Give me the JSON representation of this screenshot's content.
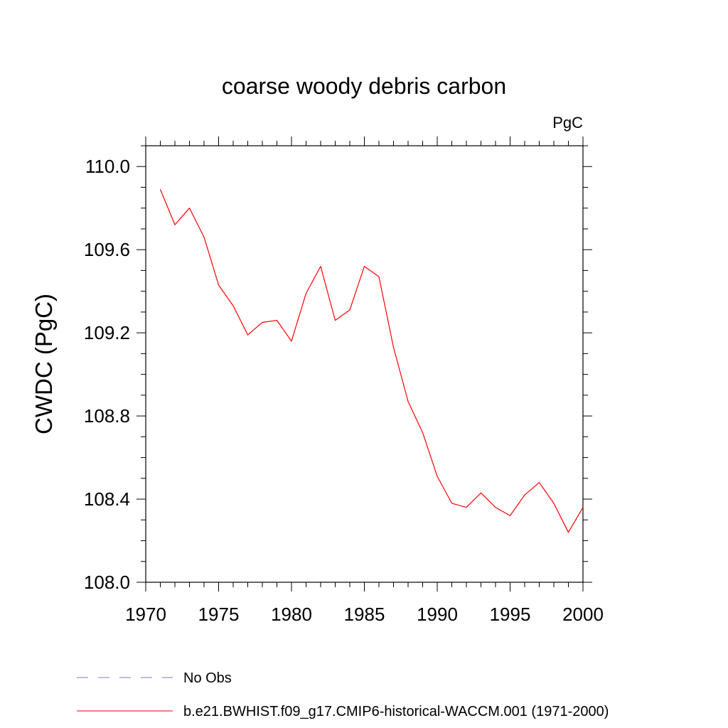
{
  "chart_data": {
    "type": "line",
    "title": "coarse woody debris carbon",
    "units": "PgC",
    "xlabel": "",
    "ylabel": "CWDC  (PgC)",
    "xlim": [
      1970,
      2000
    ],
    "ylim": [
      108.0,
      110.1
    ],
    "x_ticks": [
      "1970",
      "1975",
      "1980",
      "1985",
      "1990",
      "1995",
      "2000"
    ],
    "y_ticks": [
      "108.0",
      "108.4",
      "108.8",
      "109.2",
      "109.6",
      "110.0"
    ],
    "x": [
      1971,
      1972,
      1973,
      1974,
      1975,
      1976,
      1977,
      1978,
      1979,
      1980,
      1981,
      1982,
      1983,
      1984,
      1985,
      1986,
      1987,
      1988,
      1989,
      1990,
      1991,
      1992,
      1993,
      1994,
      1995,
      1996,
      1997,
      1998,
      1999,
      2000
    ],
    "series": [
      {
        "name": "b.e21.BWHIST.f09_g17.CMIP6-historical-WACCM.001 (1971-2000)",
        "color": "#ff0000",
        "values": [
          109.89,
          109.72,
          109.8,
          109.66,
          109.43,
          109.33,
          109.19,
          109.25,
          109.26,
          109.16,
          109.39,
          109.52,
          109.26,
          109.31,
          109.52,
          109.47,
          109.13,
          108.87,
          108.72,
          108.51,
          108.38,
          108.36,
          108.43,
          108.36,
          108.32,
          108.42,
          108.48,
          108.38,
          108.24,
          108.36
        ]
      }
    ],
    "legend": [
      {
        "label": "No Obs",
        "style": "dashed",
        "color": "#7b7bbf"
      },
      {
        "label": "b.e21.BWHIST.f09_g17.CMIP6-historical-WACCM.001 (1971-2000)",
        "style": "solid",
        "color": "#ff0000"
      }
    ],
    "legend_position": "bottom",
    "grid": false
  }
}
